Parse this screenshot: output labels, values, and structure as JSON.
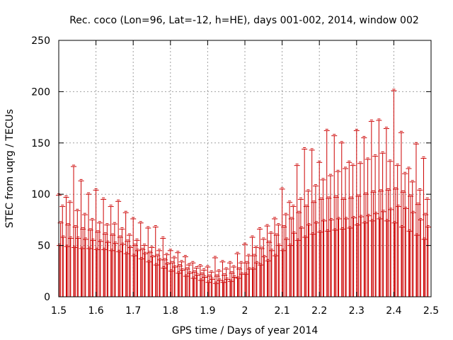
{
  "chart_data": {
    "type": "scatter",
    "title": "Rec. coco (Lon=96, Lat=-12, h=HE), days 001-002, 2014, window 002",
    "xlabel": "GPS time / Days of year 2014",
    "ylabel": "STEC from uqrg / TECUs",
    "xlim": [
      1.5,
      2.5
    ],
    "ylim": [
      0,
      250
    ],
    "x_ticks": [
      "1.5",
      "1.6",
      "1.7",
      "1.8",
      "1.9",
      "2",
      "2.1",
      "2.2",
      "2.3",
      "2.4",
      "2.5"
    ],
    "y_ticks": [
      "0",
      "50",
      "100",
      "150",
      "200",
      "250"
    ],
    "grid": true,
    "colors": {
      "series": "#cc0000",
      "grid": "#a0a0a0",
      "axis": "#000000"
    },
    "series": [
      {
        "error_low": 0,
        "x": [
          1.5,
          1.52,
          1.54,
          1.56,
          1.58,
          1.6,
          1.62,
          1.64,
          1.66,
          1.68,
          1.7,
          1.72,
          1.74,
          1.76,
          1.78,
          1.8,
          1.82,
          1.84,
          1.86,
          1.88,
          1.9,
          1.92,
          1.94,
          1.96,
          1.98,
          2.0,
          2.02,
          2.04,
          2.06,
          2.08,
          2.1,
          2.12,
          2.14,
          2.16,
          2.18,
          2.2,
          2.22,
          2.24,
          2.26,
          2.28,
          2.3,
          2.32,
          2.34,
          2.36,
          2.38,
          2.4,
          2.42,
          2.44,
          2.46,
          2.48
        ],
        "y": [
          99,
          97,
          127,
          113,
          100,
          104,
          95,
          88,
          93,
          82,
          76,
          72,
          67,
          68,
          57,
          45,
          43,
          39,
          33,
          30,
          29,
          38,
          34,
          33,
          42,
          51,
          58,
          66,
          69,
          76,
          105,
          92,
          128,
          144,
          143,
          131,
          162,
          157,
          150,
          131,
          162,
          155,
          171,
          172,
          164,
          201,
          160,
          125,
          149,
          135
        ]
      },
      {
        "error_low": 0,
        "x": [
          1.51,
          1.53,
          1.55,
          1.57,
          1.59,
          1.61,
          1.63,
          1.65,
          1.67,
          1.69,
          1.71,
          1.73,
          1.75,
          1.77,
          1.79,
          1.81,
          1.83,
          1.85,
          1.87,
          1.89,
          1.91,
          1.93,
          1.95,
          1.97,
          1.99,
          2.01,
          2.03,
          2.05,
          2.07,
          2.09,
          2.11,
          2.13,
          2.15,
          2.17,
          2.19,
          2.21,
          2.23,
          2.25,
          2.27,
          2.29,
          2.31,
          2.33,
          2.35,
          2.37,
          2.39,
          2.41,
          2.43,
          2.45,
          2.47,
          2.49
        ],
        "y": [
          88,
          92,
          84,
          80,
          75,
          72,
          70,
          71,
          66,
          60,
          55,
          50,
          48,
          45,
          41,
          38,
          34,
          31,
          28,
          26,
          24,
          25,
          27,
          29,
          33,
          40,
          48,
          56,
          62,
          70,
          80,
          88,
          95,
          103,
          108,
          114,
          118,
          122,
          125,
          128,
          130,
          134,
          137,
          140,
          132,
          128,
          120,
          112,
          104,
          95
        ]
      },
      {
        "error_low": 0,
        "x": [
          1.505,
          1.525,
          1.545,
          1.565,
          1.585,
          1.605,
          1.625,
          1.645,
          1.665,
          1.685,
          1.705,
          1.725,
          1.745,
          1.765,
          1.785,
          1.805,
          1.825,
          1.845,
          1.865,
          1.885,
          1.905,
          1.925,
          1.945,
          1.965,
          1.985,
          2.005,
          2.025,
          2.045,
          2.065,
          2.085,
          2.105,
          2.125,
          2.145,
          2.165,
          2.185,
          2.205,
          2.225,
          2.245,
          2.265,
          2.285,
          2.305,
          2.325,
          2.345,
          2.365,
          2.385,
          2.405,
          2.425,
          2.445,
          2.465,
          2.485
        ],
        "y": [
          72,
          70,
          68,
          66,
          65,
          63,
          61,
          60,
          58,
          54,
          50,
          46,
          43,
          40,
          36,
          33,
          30,
          27,
          24,
          22,
          20,
          20,
          21,
          23,
          27,
          33,
          40,
          47,
          53,
          60,
          68,
          76,
          82,
          88,
          92,
          95,
          96,
          97,
          95,
          96,
          98,
          100,
          102,
          103,
          104,
          105,
          102,
          98,
          90,
          80
        ]
      },
      {
        "error_low": 0,
        "x": [
          1.512,
          1.532,
          1.552,
          1.572,
          1.592,
          1.612,
          1.632,
          1.652,
          1.672,
          1.692,
          1.712,
          1.732,
          1.752,
          1.772,
          1.792,
          1.812,
          1.832,
          1.852,
          1.872,
          1.892,
          1.912,
          1.932,
          1.952,
          1.972,
          1.992,
          2.012,
          2.032,
          2.052,
          2.072,
          2.092,
          2.112,
          2.132,
          2.152,
          2.172,
          2.192,
          2.212,
          2.232,
          2.252,
          2.272,
          2.292,
          2.312,
          2.332,
          2.352,
          2.372,
          2.392,
          2.412,
          2.432,
          2.452,
          2.472,
          2.492
        ],
        "y": [
          58,
          57,
          57,
          56,
          55,
          54,
          53,
          52,
          51,
          48,
          45,
          42,
          39,
          36,
          32,
          29,
          26,
          23,
          21,
          19,
          17,
          16,
          17,
          19,
          22,
          27,
          33,
          39,
          45,
          50,
          56,
          62,
          67,
          70,
          72,
          74,
          75,
          76,
          76,
          77,
          78,
          79,
          81,
          83,
          85,
          88,
          86,
          82,
          75,
          68
        ]
      },
      {
        "error_low": 0,
        "x": [
          1.502,
          1.522,
          1.542,
          1.562,
          1.582,
          1.602,
          1.622,
          1.642,
          1.662,
          1.682,
          1.702,
          1.722,
          1.742,
          1.762,
          1.782,
          1.802,
          1.822,
          1.842,
          1.862,
          1.882,
          1.902,
          1.922,
          1.942,
          1.962,
          1.982,
          2.002,
          2.022,
          2.042,
          2.062,
          2.082,
          2.102,
          2.122,
          2.142,
          2.162,
          2.182,
          2.202,
          2.222,
          2.242,
          2.262,
          2.282,
          2.302,
          2.322,
          2.342,
          2.362,
          2.382,
          2.402,
          2.422,
          2.442,
          2.462,
          2.482
        ],
        "y": [
          50,
          49,
          48,
          47,
          47,
          46,
          46,
          45,
          44,
          42,
          40,
          37,
          34,
          31,
          28,
          25,
          23,
          20,
          18,
          16,
          14,
          13,
          14,
          15,
          18,
          22,
          27,
          31,
          35,
          40,
          45,
          50,
          55,
          58,
          61,
          63,
          64,
          65,
          66,
          67,
          70,
          72,
          74,
          76,
          74,
          72,
          68,
          64,
          60,
          56
        ]
      }
    ]
  }
}
